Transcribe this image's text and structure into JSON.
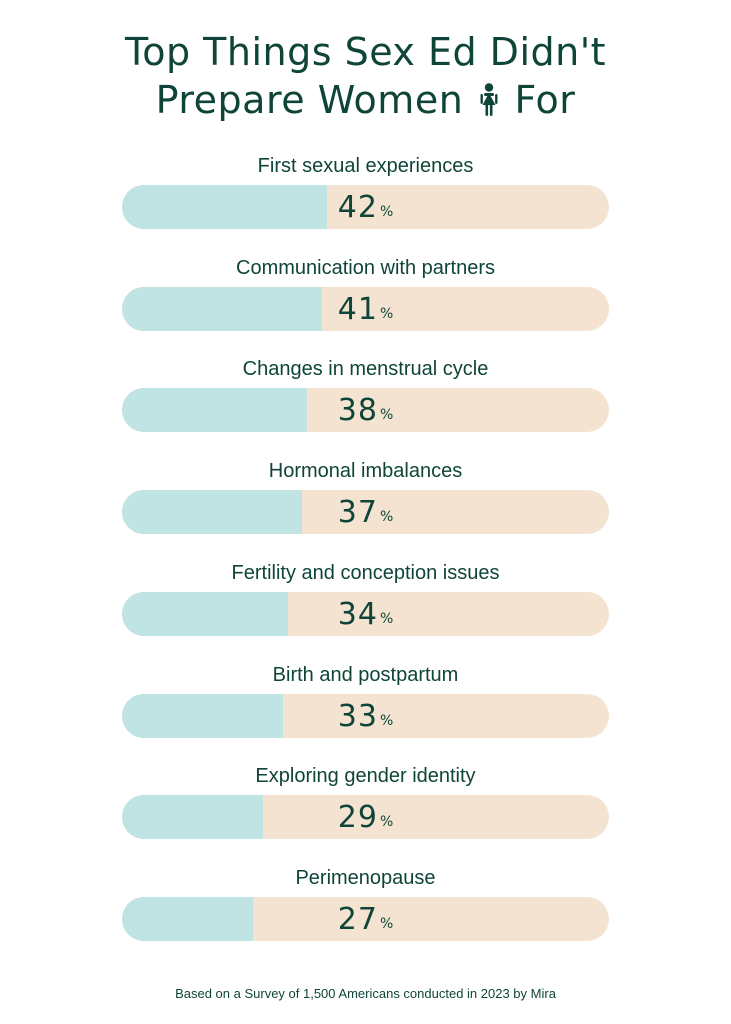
{
  "title": {
    "line1": "Top Things Sex Ed Didn't",
    "line2_before": "Prepare Women",
    "line2_after": "For",
    "icon": "woman-icon"
  },
  "colors": {
    "text": "#0f4538",
    "bar_fill": "#bfe4e3",
    "bar_track": "#f5e3d1"
  },
  "chart_data": {
    "type": "bar",
    "orientation": "horizontal",
    "categories": [
      "First sexual experiences",
      "Communication with partners",
      "Changes in menstrual cycle",
      "Hormonal imbalances",
      "Fertility and conception issues",
      "Birth and postpartum",
      "Exploring gender identity",
      "Perimenopause"
    ],
    "values": [
      42,
      41,
      38,
      37,
      34,
      33,
      29,
      27
    ],
    "unit": "%",
    "xlim": [
      0,
      100
    ],
    "grid": false,
    "legend": "none"
  },
  "footnote": "Based on a Survey of 1,500 Americans conducted in 2023 by Mira"
}
